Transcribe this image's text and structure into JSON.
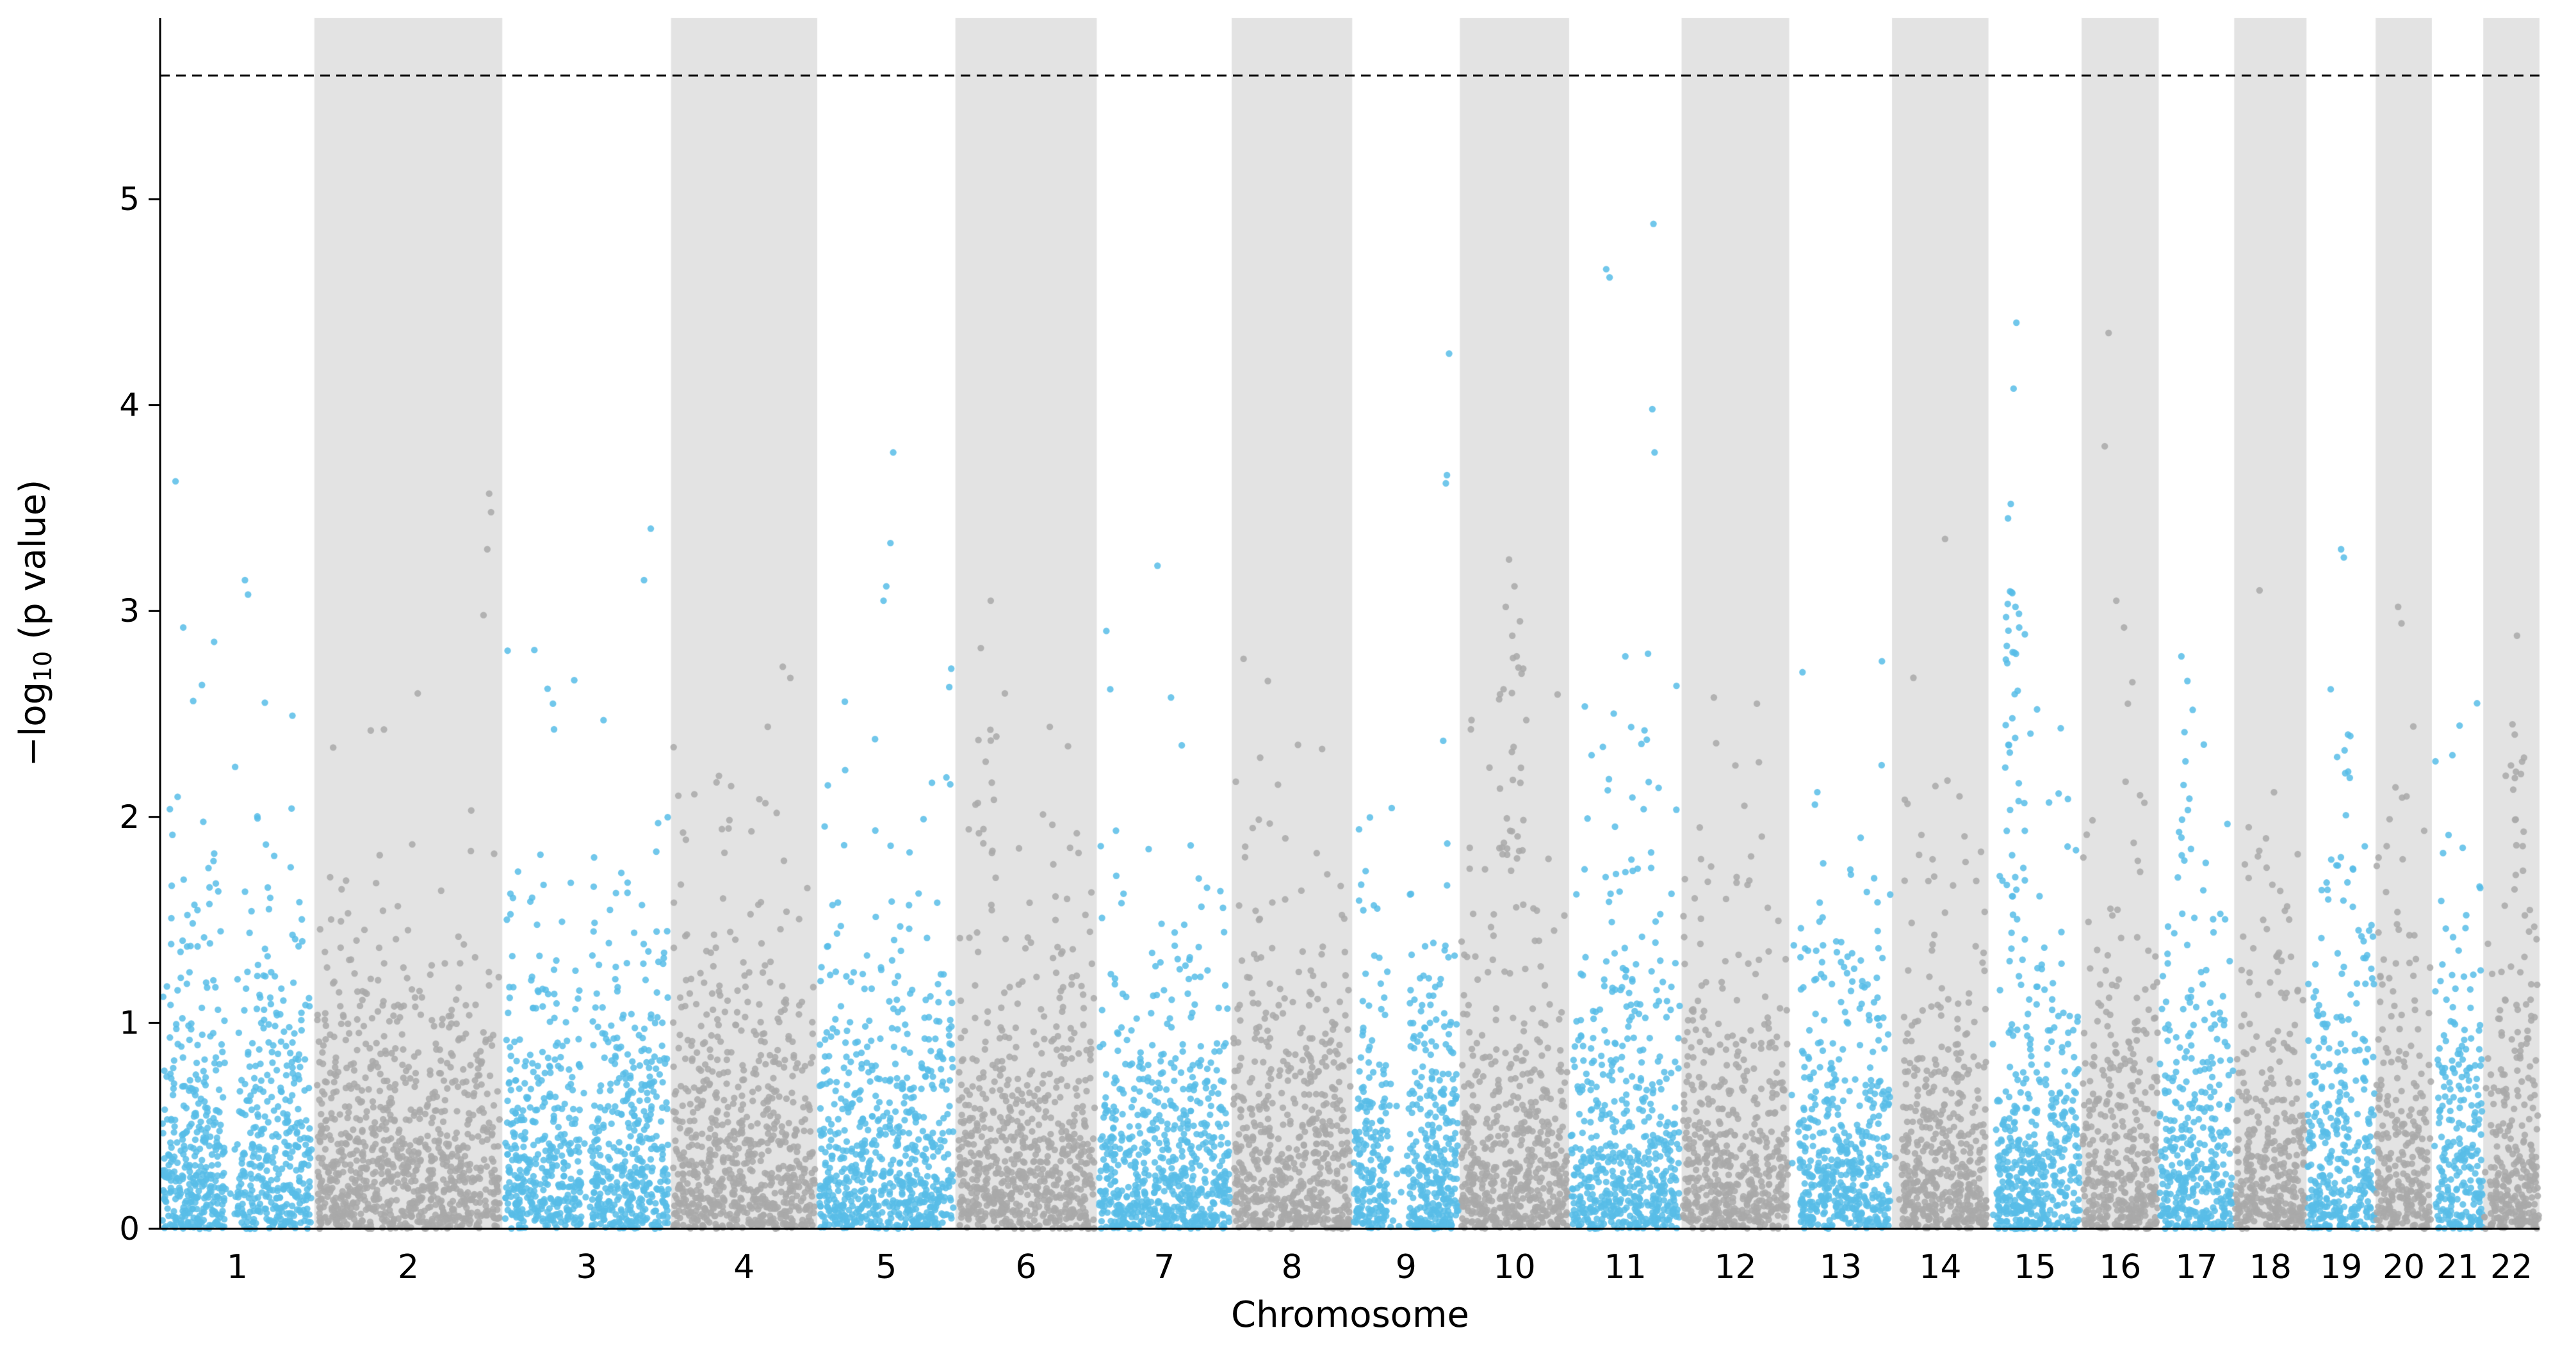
{
  "axes": {
    "ylabel_prefix": "−log",
    "ylabel_sub": "10",
    "ylabel_suffix": " (p value)",
    "xlabel": "Chromosome",
    "yticks": [
      0,
      1,
      2,
      3,
      4,
      5
    ]
  },
  "chart_data": {
    "type": "scatter",
    "variant": "manhattan",
    "title": "",
    "xlabel": "Chromosome",
    "ylabel": "-log10 (p value)",
    "ylim": [
      0,
      5.88
    ],
    "grid": false,
    "legend": "none",
    "threshold_line": {
      "y": 5.6,
      "style": "dashed",
      "color": "#000000"
    },
    "colors": {
      "odd": "#58bde8",
      "even": "#a9a9a9",
      "band": "#e3e3e3"
    },
    "seed": 1337,
    "points_per_unit_width": 8,
    "point_radius": 5.2,
    "point_opacity": 0.85,
    "random_tail_cap": 2.95,
    "chromosomes": [
      {
        "label": "1",
        "rel_width": 96,
        "band": false,
        "gap": [
          0.42,
          0.5
        ]
      },
      {
        "label": "2",
        "rel_width": 117,
        "band": true,
        "gap": null
      },
      {
        "label": "3",
        "rel_width": 105,
        "band": false,
        "gap": [
          0.47,
          0.53
        ]
      },
      {
        "label": "4",
        "rel_width": 91,
        "band": true,
        "gap": null
      },
      {
        "label": "5",
        "rel_width": 86,
        "band": false,
        "gap": null
      },
      {
        "label": "6",
        "rel_width": 88,
        "band": true,
        "gap": null
      },
      {
        "label": "7",
        "rel_width": 84,
        "band": false,
        "gap": null
      },
      {
        "label": "8",
        "rel_width": 75,
        "band": true,
        "gap": null
      },
      {
        "label": "9",
        "rel_width": 67,
        "band": false,
        "gap": [
          0.33,
          0.52
        ]
      },
      {
        "label": "10",
        "rel_width": 68,
        "band": true,
        "gap": null
      },
      {
        "label": "11",
        "rel_width": 70,
        "band": false,
        "gap": null
      },
      {
        "label": "12",
        "rel_width": 67,
        "band": true,
        "gap": null
      },
      {
        "label": "13",
        "rel_width": 64,
        "band": false,
        "gap": [
          0.0,
          0.1
        ]
      },
      {
        "label": "14",
        "rel_width": 60,
        "band": true,
        "gap": [
          0.0,
          0.1
        ]
      },
      {
        "label": "15",
        "rel_width": 58,
        "band": false,
        "gap": [
          0.0,
          0.08
        ]
      },
      {
        "label": "16",
        "rel_width": 48,
        "band": true,
        "gap": null
      },
      {
        "label": "17",
        "rel_width": 47,
        "band": false,
        "gap": null
      },
      {
        "label": "18",
        "rel_width": 45,
        "band": true,
        "gap": null
      },
      {
        "label": "19",
        "rel_width": 43,
        "band": false,
        "gap": null
      },
      {
        "label": "20",
        "rel_width": 35,
        "band": true,
        "gap": null
      },
      {
        "label": "21",
        "rel_width": 32,
        "band": false,
        "gap": [
          0.0,
          0.12
        ]
      },
      {
        "label": "22",
        "rel_width": 35,
        "band": true,
        "gap": [
          0.0,
          0.12
        ]
      }
    ],
    "notable_peaks": [
      [
        1,
        0.1,
        3.63
      ],
      [
        1,
        0.55,
        3.15
      ],
      [
        1,
        0.57,
        3.08
      ],
      [
        1,
        0.15,
        2.92
      ],
      [
        1,
        0.35,
        2.85
      ],
      [
        2,
        0.93,
        3.57
      ],
      [
        2,
        0.94,
        3.48
      ],
      [
        2,
        0.92,
        3.3
      ],
      [
        2,
        0.9,
        2.98
      ],
      [
        2,
        0.55,
        2.6
      ],
      [
        2,
        0.3,
        2.42
      ],
      [
        3,
        0.88,
        3.4
      ],
      [
        3,
        0.84,
        3.15
      ],
      [
        3,
        0.3,
        2.55
      ],
      [
        3,
        0.6,
        2.47
      ],
      [
        4,
        0.55,
        1.93
      ],
      [
        5,
        0.55,
        3.77
      ],
      [
        5,
        0.53,
        3.33
      ],
      [
        5,
        0.5,
        3.12
      ],
      [
        5,
        0.48,
        3.05
      ],
      [
        5,
        0.2,
        2.56
      ],
      [
        5,
        0.97,
        2.72
      ],
      [
        6,
        0.25,
        3.05
      ],
      [
        6,
        0.18,
        2.82
      ],
      [
        6,
        0.35,
        2.6
      ],
      [
        7,
        0.45,
        3.22
      ],
      [
        7,
        0.1,
        2.62
      ],
      [
        7,
        0.55,
        2.58
      ],
      [
        8,
        0.3,
        2.66
      ],
      [
        8,
        0.55,
        2.35
      ],
      [
        8,
        0.75,
        2.33
      ],
      [
        9,
        0.9,
        4.25
      ],
      [
        9,
        0.88,
        3.66
      ],
      [
        9,
        0.87,
        3.62
      ],
      [
        10,
        0.45,
        3.25
      ],
      [
        10,
        0.5,
        3.12
      ],
      [
        10,
        0.42,
        3.02
      ],
      [
        10,
        0.55,
        2.95
      ],
      [
        10,
        0.48,
        2.88
      ],
      [
        10,
        0.52,
        2.78
      ],
      [
        10,
        0.58,
        2.72
      ],
      [
        10,
        0.4,
        2.62
      ],
      [
        11,
        0.75,
        4.88
      ],
      [
        11,
        0.33,
        4.66
      ],
      [
        11,
        0.36,
        4.62
      ],
      [
        11,
        0.74,
        3.98
      ],
      [
        11,
        0.76,
        3.77
      ],
      [
        11,
        0.5,
        2.78
      ],
      [
        11,
        0.2,
        2.3
      ],
      [
        12,
        0.3,
        2.58
      ],
      [
        12,
        0.7,
        2.55
      ],
      [
        12,
        0.5,
        2.25
      ],
      [
        13,
        0.25,
        2.06
      ],
      [
        13,
        0.6,
        1.72
      ],
      [
        14,
        0.55,
        3.35
      ],
      [
        14,
        0.45,
        2.15
      ],
      [
        14,
        0.7,
        2.1
      ],
      [
        15,
        0.3,
        4.4
      ],
      [
        15,
        0.27,
        4.08
      ],
      [
        15,
        0.24,
        3.52
      ],
      [
        15,
        0.21,
        3.45
      ],
      [
        15,
        0.29,
        3.02
      ],
      [
        15,
        0.33,
        2.92
      ],
      [
        15,
        0.26,
        2.8
      ],
      [
        16,
        0.35,
        4.35
      ],
      [
        16,
        0.3,
        3.8
      ],
      [
        16,
        0.45,
        3.05
      ],
      [
        16,
        0.55,
        2.92
      ],
      [
        16,
        0.6,
        2.55
      ],
      [
        17,
        0.3,
        2.78
      ],
      [
        17,
        0.38,
        2.66
      ],
      [
        17,
        0.45,
        2.52
      ],
      [
        18,
        0.35,
        3.1
      ],
      [
        18,
        0.55,
        2.12
      ],
      [
        18,
        0.2,
        1.95
      ],
      [
        19,
        0.5,
        3.3
      ],
      [
        19,
        0.54,
        3.26
      ],
      [
        19,
        0.35,
        2.62
      ],
      [
        19,
        0.6,
        2.4
      ],
      [
        20,
        0.4,
        3.02
      ],
      [
        20,
        0.46,
        2.94
      ],
      [
        20,
        0.55,
        2.1
      ],
      [
        21,
        0.4,
        2.3
      ],
      [
        21,
        0.6,
        1.85
      ],
      [
        22,
        0.6,
        2.88
      ],
      [
        22,
        0.52,
        2.45
      ],
      [
        22,
        0.56,
        2.4
      ],
      [
        22,
        0.4,
        2.2
      ]
    ],
    "clusters": [
      {
        "chrom": 6,
        "frac": [
          0.15,
          0.3
        ],
        "y": [
          1.5,
          2.7
        ],
        "count": 12
      },
      {
        "chrom": 10,
        "frac": [
          0.35,
          0.6
        ],
        "y": [
          1.5,
          2.9
        ],
        "count": 26
      },
      {
        "chrom": 11,
        "frac": [
          0.3,
          0.8
        ],
        "y": [
          1.5,
          2.6
        ],
        "count": 18
      },
      {
        "chrom": 15,
        "frac": [
          0.18,
          0.4
        ],
        "y": [
          1.5,
          3.1
        ],
        "count": 34
      },
      {
        "chrom": 17,
        "frac": [
          0.25,
          0.45
        ],
        "y": [
          1.5,
          2.5
        ],
        "count": 12
      },
      {
        "chrom": 19,
        "frac": [
          0.3,
          0.7
        ],
        "y": [
          1.5,
          2.4
        ],
        "count": 14
      },
      {
        "chrom": 22,
        "frac": [
          0.45,
          0.75
        ],
        "y": [
          1.5,
          2.4
        ],
        "count": 12
      }
    ]
  }
}
